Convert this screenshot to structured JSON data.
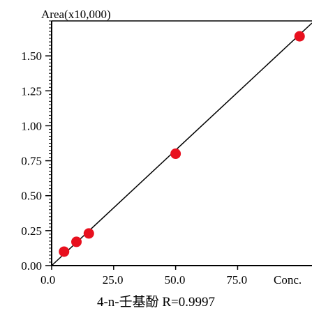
{
  "chart_data": {
    "type": "scatter",
    "y_unit_label": "Area(x10,000)",
    "x_end_label": "Conc.",
    "caption": "4-n-壬基酚  R=0.9997",
    "xlim": [
      0,
      105
    ],
    "ylim": [
      0,
      1.75
    ],
    "x_ticks": [
      {
        "value": 0,
        "label": "0.0"
      },
      {
        "value": 25,
        "label": "25.0"
      },
      {
        "value": 50,
        "label": "50.0"
      },
      {
        "value": 75,
        "label": "75.0"
      }
    ],
    "y_ticks": [
      {
        "value": 0,
        "label": "0.00"
      },
      {
        "value": 0.25,
        "label": "0.25"
      },
      {
        "value": 0.5,
        "label": "0.50"
      },
      {
        "value": 0.75,
        "label": "0.75"
      },
      {
        "value": 1.0,
        "label": "1.00"
      },
      {
        "value": 1.25,
        "label": "1.25"
      },
      {
        "value": 1.5,
        "label": "1.50"
      }
    ],
    "points": [
      {
        "x": 5,
        "y": 0.1
      },
      {
        "x": 10,
        "y": 0.17
      },
      {
        "x": 15,
        "y": 0.23
      },
      {
        "x": 50,
        "y": 0.8
      },
      {
        "x": 100,
        "y": 1.64
      }
    ],
    "fit_line": {
      "x": [
        0,
        105
      ],
      "y": [
        0,
        1.735
      ]
    },
    "colors": {
      "point": "#e8101e",
      "line": "#000000",
      "axis": "#000000"
    }
  }
}
